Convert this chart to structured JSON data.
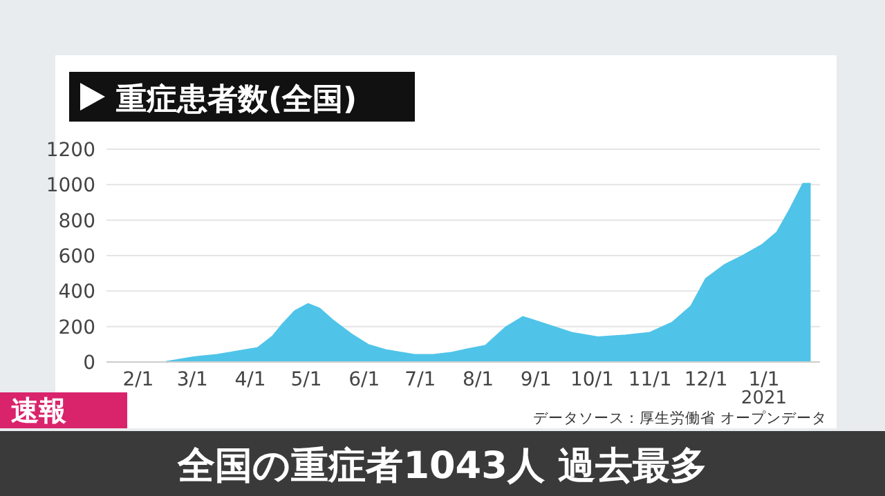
{
  "chart_data": {
    "type": "area",
    "title": "重症患者数(全国)",
    "subtitle": "全国の重症者1043人 過去最多",
    "annotations": [
      "速報",
      "データソース：厚生労働省 オープンデータ",
      "2021"
    ],
    "x": [
      "2020-02-16",
      "2020-03-02",
      "2020-03-14",
      "2020-03-26",
      "2020-04-05",
      "2020-04-13",
      "2020-04-18",
      "2020-04-25",
      "2020-05-02",
      "2020-05-08",
      "2020-05-15",
      "2020-05-25",
      "2020-06-03",
      "2020-06-13",
      "2020-06-28",
      "2020-07-08",
      "2020-07-18",
      "2020-07-26",
      "2020-08-05",
      "2020-08-16",
      "2020-08-25",
      "2020-09-05",
      "2020-09-20",
      "2020-10-04",
      "2020-10-19",
      "2020-11-01",
      "2020-11-13",
      "2020-11-23",
      "2020-12-01",
      "2020-12-11",
      "2020-12-21",
      "2020-12-31",
      "2021-01-08",
      "2021-01-15",
      "2021-01-22",
      "2021-01-26"
    ],
    "values": [
      0,
      26,
      39,
      60,
      78,
      143,
      208,
      287,
      326,
      300,
      235,
      156,
      96,
      65,
      39,
      39,
      52,
      70,
      91,
      196,
      253,
      216,
      164,
      138,
      149,
      164,
      222,
      313,
      469,
      547,
      600,
      659,
      730,
      860,
      1004,
      1004
    ],
    "color": "#4fc4e8",
    "xlim": [
      "2020-01-15",
      "2021-01-31"
    ],
    "xticks": [
      {
        "value": "2020-02-01",
        "label": "2/1"
      },
      {
        "value": "2020-03-01",
        "label": "3/1"
      },
      {
        "value": "2020-04-01",
        "label": "4/1"
      },
      {
        "value": "2020-05-01",
        "label": "5/1"
      },
      {
        "value": "2020-06-01",
        "label": "6/1"
      },
      {
        "value": "2020-07-01",
        "label": "7/1"
      },
      {
        "value": "2020-08-01",
        "label": "8/1"
      },
      {
        "value": "2020-09-01",
        "label": "9/1"
      },
      {
        "value": "2020-10-01",
        "label": "10/1"
      },
      {
        "value": "2020-11-01",
        "label": "11/1"
      },
      {
        "value": "2020-12-01",
        "label": "12/1"
      },
      {
        "value": "2021-01-01",
        "label": "1/1"
      }
    ],
    "ylim": [
      0,
      1200
    ],
    "yticks": [
      0,
      200,
      400,
      600,
      800,
      1000,
      1200
    ],
    "grid": "y"
  }
}
